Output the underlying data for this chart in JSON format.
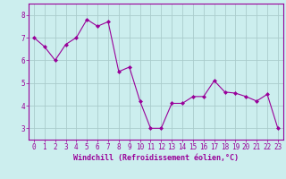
{
  "x": [
    0,
    1,
    2,
    3,
    4,
    5,
    6,
    7,
    8,
    9,
    10,
    11,
    12,
    13,
    14,
    15,
    16,
    17,
    18,
    19,
    20,
    21,
    22,
    23
  ],
  "y": [
    7.0,
    6.6,
    6.0,
    6.7,
    7.0,
    7.8,
    7.5,
    7.7,
    5.5,
    5.7,
    4.2,
    3.0,
    3.0,
    4.1,
    4.1,
    4.4,
    4.4,
    5.1,
    4.6,
    4.55,
    4.4,
    4.2,
    4.5,
    3.0
  ],
  "line_color": "#990099",
  "marker": "D",
  "markersize": 2.0,
  "linewidth": 0.8,
  "bg_color": "#cceeee",
  "grid_color": "#aacccc",
  "xlabel": "Windchill (Refroidissement éolien,°C)",
  "xlabel_color": "#990099",
  "tick_color": "#990099",
  "spine_color": "#990099",
  "xlim": [
    -0.5,
    23.5
  ],
  "ylim": [
    2.5,
    8.5
  ],
  "yticks": [
    3,
    4,
    5,
    6,
    7,
    8
  ],
  "xticks": [
    0,
    1,
    2,
    3,
    4,
    5,
    6,
    7,
    8,
    9,
    10,
    11,
    12,
    13,
    14,
    15,
    16,
    17,
    18,
    19,
    20,
    21,
    22,
    23
  ],
  "tick_fontsize": 5.5,
  "xlabel_fontsize": 6.0
}
